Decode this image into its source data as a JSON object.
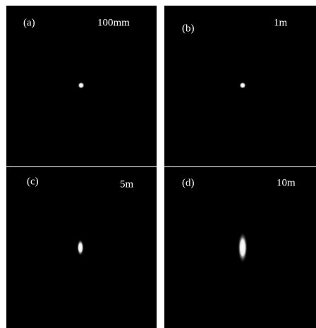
{
  "panels": [
    {
      "label": "(a)",
      "distance": "100mm"
    },
    {
      "label": "(b)",
      "distance": "1m"
    },
    {
      "label": "(c)",
      "distance": "5m"
    },
    {
      "label": "(d)",
      "distance": "10m"
    }
  ]
}
